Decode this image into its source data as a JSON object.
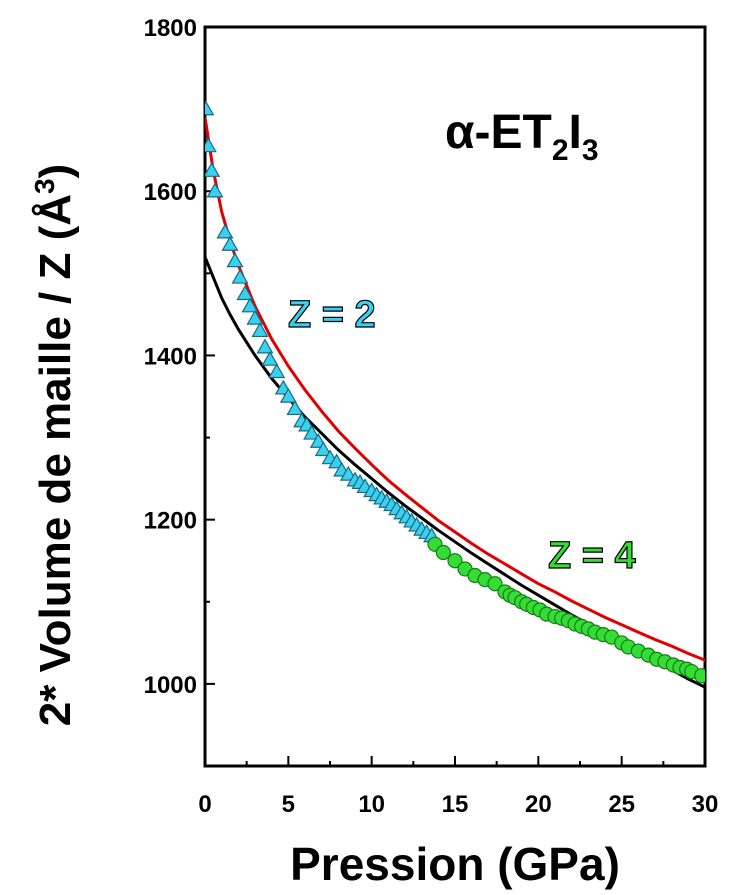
{
  "chart_data": {
    "type": "scatter",
    "title": "α-ET2I3",
    "title_parts": {
      "base": "α-ET",
      "sub1": "2",
      "mid": "I",
      "sub2": "3"
    },
    "xlabel": "Pression (GPa)",
    "ylabel": "2* Volume de maille / Z (Å3)",
    "ylabel_parts": {
      "base": "2* Volume de maille / Z (Å",
      "sup": "3",
      "end": ")"
    },
    "xlim": [
      0,
      30
    ],
    "ylim": [
      900,
      1800
    ],
    "xticks": [
      0,
      5,
      10,
      15,
      20,
      25,
      30
    ],
    "yticks": [
      1000,
      1200,
      1400,
      1600,
      1800
    ],
    "xtick_labels": [
      "0",
      "5",
      "10",
      "15",
      "20",
      "25",
      "30"
    ],
    "ytick_labels": [
      "1000",
      "1200",
      "1400",
      "1600",
      "1800"
    ],
    "annotations": [
      {
        "text": "Z = 2",
        "color": "#3ad0f0"
      },
      {
        "text": "Z = 4",
        "color": "#33dd33"
      }
    ],
    "series": [
      {
        "marker": "triangle",
        "color": "#3ad0f0",
        "x": [
          0.05,
          0.2,
          0.4,
          0.6,
          1.2,
          1.5,
          1.8,
          2.1,
          2.4,
          2.7,
          3.0,
          3.3,
          3.6,
          3.9,
          4.3,
          4.7,
          5.0,
          5.4,
          5.8,
          6.1,
          6.4,
          6.8,
          7.1,
          7.5,
          7.9,
          8.2,
          8.6,
          9.0,
          9.3,
          9.6,
          10.0,
          10.3,
          10.6,
          10.9,
          11.2,
          11.5,
          11.8,
          12.1,
          12.4,
          12.7,
          13.0,
          13.3,
          13.6
        ],
        "y": [
          1700,
          1655,
          1625,
          1600,
          1550,
          1535,
          1515,
          1495,
          1475,
          1460,
          1445,
          1430,
          1410,
          1395,
          1380,
          1360,
          1350,
          1335,
          1320,
          1315,
          1305,
          1295,
          1285,
          1275,
          1270,
          1260,
          1255,
          1248,
          1245,
          1240,
          1235,
          1230,
          1226,
          1222,
          1218,
          1213,
          1208,
          1203,
          1198,
          1193,
          1188,
          1184,
          1180
        ]
      },
      {
        "marker": "circle",
        "color": "#33dd33",
        "x": [
          13.8,
          14.3,
          15.0,
          15.6,
          16.2,
          16.8,
          17.4,
          18.0,
          18.3,
          18.6,
          19.0,
          19.3,
          19.7,
          20.1,
          20.5,
          21.0,
          21.4,
          21.8,
          22.2,
          22.6,
          23.0,
          23.4,
          23.9,
          24.4,
          25.0,
          25.4,
          26.0,
          26.6,
          27.1,
          27.6,
          28.1,
          28.5,
          28.9,
          29.2,
          29.8
        ],
        "y": [
          1170,
          1160,
          1150,
          1140,
          1132,
          1127,
          1122,
          1112,
          1108,
          1105,
          1100,
          1097,
          1093,
          1090,
          1085,
          1082,
          1080,
          1077,
          1073,
          1070,
          1067,
          1063,
          1060,
          1057,
          1050,
          1045,
          1040,
          1035,
          1030,
          1027,
          1023,
          1020,
          1018,
          1015,
          1010
        ]
      },
      {
        "marker": "none",
        "line": "solid",
        "color": "#e00000",
        "x": [
          0,
          0.5,
          1,
          1.5,
          2,
          3,
          4,
          5,
          6,
          7,
          8,
          9,
          10,
          11,
          12,
          13,
          14,
          15,
          16,
          17,
          18,
          19,
          20,
          21,
          22,
          23,
          24,
          25,
          26,
          27,
          28,
          29,
          30,
          31
        ],
        "y": [
          1690,
          1625,
          1575,
          1540,
          1510,
          1460,
          1420,
          1387,
          1358,
          1332,
          1308,
          1287,
          1267,
          1248,
          1231,
          1215,
          1199,
          1185,
          1171,
          1158,
          1146,
          1134,
          1122,
          1112,
          1101,
          1091,
          1081,
          1072,
          1063,
          1054,
          1046,
          1037,
          1029,
          1022
        ]
      },
      {
        "marker": "none",
        "line": "solid",
        "color": "#000000",
        "x": [
          0,
          0.5,
          1,
          1.5,
          2,
          3,
          4,
          5,
          6,
          7,
          8,
          9,
          10,
          11,
          12,
          13,
          14,
          15,
          16,
          17,
          18,
          19,
          20,
          21,
          22,
          23,
          24,
          25,
          26,
          27,
          28,
          29,
          30,
          31
        ],
        "y": [
          1520,
          1495,
          1470,
          1450,
          1432,
          1400,
          1372,
          1348,
          1325,
          1305,
          1285,
          1267,
          1250,
          1233,
          1217,
          1202,
          1187,
          1173,
          1159,
          1146,
          1133,
          1120,
          1108,
          1096,
          1084,
          1073,
          1061,
          1050,
          1039,
          1028,
          1017,
          1006,
          996,
          986
        ]
      }
    ]
  }
}
